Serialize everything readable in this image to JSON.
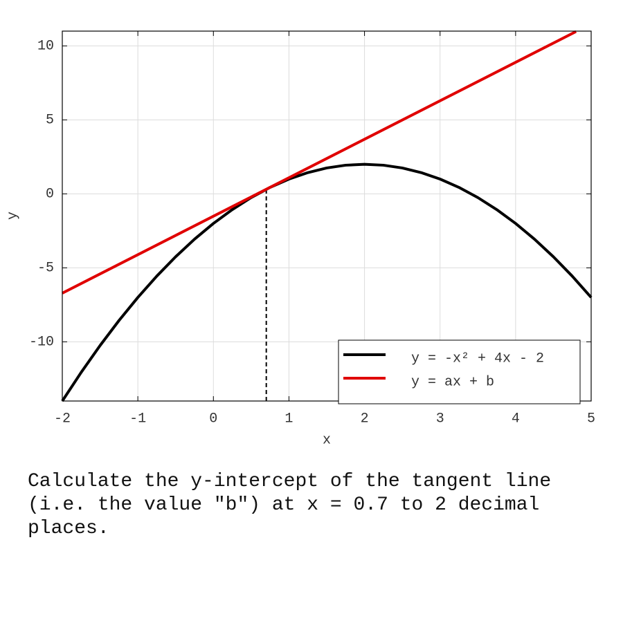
{
  "chart_data": {
    "type": "line",
    "xlabel": "x",
    "ylabel": "y",
    "xlim": [
      -2,
      5
    ],
    "ylim": [
      -14,
      11
    ],
    "xticks": [
      -2,
      -1,
      0,
      1,
      2,
      3,
      4,
      5
    ],
    "yticks": [
      -10,
      -5,
      0,
      5,
      10
    ],
    "grid": true,
    "legend": "lower right",
    "series": [
      {
        "name": "y = -x² + 4x - 2",
        "color": "#000000",
        "x": [
          -2,
          -1.75,
          -1.5,
          -1.25,
          -1,
          -0.75,
          -0.5,
          -0.25,
          0,
          0.25,
          0.5,
          0.75,
          1,
          1.25,
          1.5,
          1.75,
          2,
          2.25,
          2.5,
          2.75,
          3,
          3.25,
          3.5,
          3.75,
          4,
          4.25,
          4.5,
          4.75,
          5
        ],
        "values": [
          -14,
          -12.0625,
          -10.25,
          -8.5625,
          -7,
          -5.5625,
          -4.25,
          -3.0625,
          -2,
          -1.0625,
          -0.25,
          0.4375,
          1,
          1.4375,
          1.75,
          1.9375,
          2,
          1.9375,
          1.75,
          1.4375,
          1,
          0.4375,
          -0.25,
          -1.0625,
          -2,
          -3.0625,
          -4.25,
          -5.5625,
          -7
        ]
      },
      {
        "name": "y = ax + b",
        "color": "#e00000",
        "x": [
          -2,
          4.8
        ],
        "values": [
          -6.71,
          10.97
        ]
      }
    ],
    "marker": {
      "x": 0.7,
      "y": 0.31
    }
  },
  "question": "Calculate the y-intercept of the tangent line (i.e. the value \"b\") at x = 0.7 to 2 decimal places."
}
